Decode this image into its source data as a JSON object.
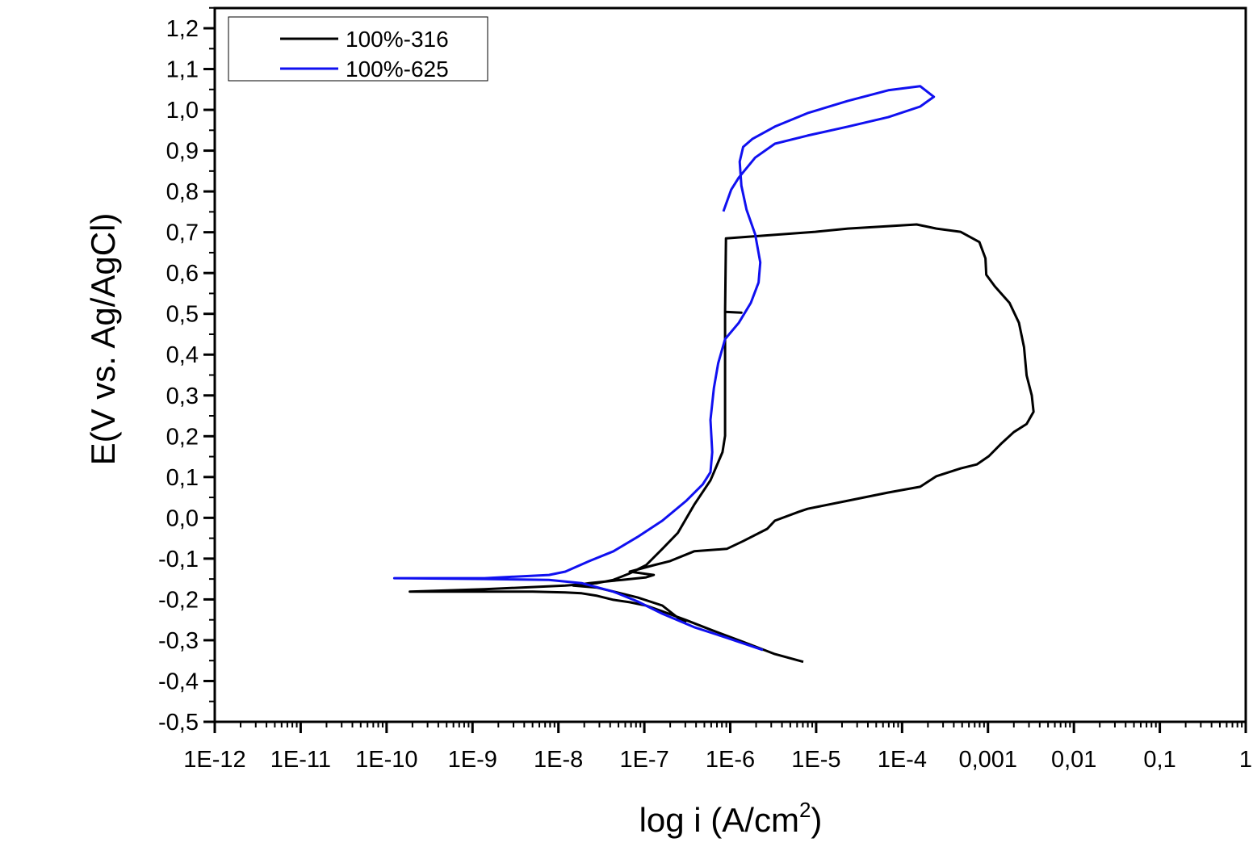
{
  "chart_data": {
    "type": "line",
    "title": "",
    "xlabel": "log i (A/cm",
    "xlabel_sup": "2",
    "xlabel_close": ")",
    "ylabel": "E(V vs. Ag/AgCl)",
    "x_scale": "log",
    "x_note": "x values are log10 of current density i (A/cm2)",
    "xlim_log10": [
      -12,
      0
    ],
    "ylim": [
      -0.5,
      1.25
    ],
    "x_tick_labels": [
      "1E-12",
      "1E-11",
      "1E-10",
      "1E-9",
      "1E-8",
      "1E-7",
      "1E-6",
      "1E-5",
      "1E-4",
      "0,001",
      "0,01",
      "0,1",
      "1"
    ],
    "y_ticks": [
      -0.5,
      -0.4,
      -0.3,
      -0.2,
      -0.1,
      0,
      0.1,
      0.2,
      0.3,
      0.4,
      0.5,
      0.6,
      0.7,
      0.8,
      0.9,
      1.0,
      1.1,
      1.2
    ],
    "y_tick_labels": [
      "-0,5",
      "-0,4",
      "-0,3",
      "-0,2",
      "-0,1",
      "0,0",
      "0,1",
      "0,2",
      "0,3",
      "0,4",
      "0,5",
      "0,6",
      "0,7",
      "0,8",
      "0,9",
      "1,0",
      "1,1",
      "1,2"
    ],
    "grid": false,
    "legend_position": "top-left",
    "series": [
      {
        "name": "100%-316",
        "color": "#000000",
        "points": [
          [
            -5.15,
            -0.353
          ],
          [
            -5.48,
            -0.334
          ],
          [
            -5.85,
            -0.304
          ],
          [
            -6.23,
            -0.274
          ],
          [
            -6.51,
            -0.251
          ],
          [
            -6.79,
            -0.229
          ],
          [
            -6.98,
            -0.215
          ],
          [
            -7.17,
            -0.207
          ],
          [
            -7.36,
            -0.201
          ],
          [
            -7.55,
            -0.191
          ],
          [
            -7.73,
            -0.185
          ],
          [
            -7.92,
            -0.183
          ],
          [
            -8.3,
            -0.181
          ],
          [
            -8.86,
            -0.181
          ],
          [
            -9.73,
            -0.181
          ],
          [
            -8.86,
            -0.175
          ],
          [
            -7.92,
            -0.166
          ],
          [
            -7.55,
            -0.16
          ],
          [
            -7.36,
            -0.152
          ],
          [
            -7.17,
            -0.136
          ],
          [
            -6.98,
            -0.116
          ],
          [
            -6.79,
            -0.076
          ],
          [
            -6.61,
            -0.037
          ],
          [
            -6.42,
            0.032
          ],
          [
            -6.23,
            0.092
          ],
          [
            -6.21,
            0.102
          ],
          [
            -6.09,
            0.161
          ],
          [
            -6.06,
            0.201
          ],
          [
            -6.06,
            0.28
          ],
          [
            -6.06,
            0.478
          ],
          [
            -6.06,
            0.505
          ],
          [
            -5.87,
            0.503
          ],
          [
            -6.06,
            0.505
          ],
          [
            -6.05,
            0.685
          ],
          [
            -5.01,
            0.701
          ],
          [
            -4.63,
            0.709
          ],
          [
            -4.16,
            0.715
          ],
          [
            -3.83,
            0.719
          ],
          [
            -3.6,
            0.709
          ],
          [
            -3.32,
            0.701
          ],
          [
            -3.1,
            0.676
          ],
          [
            -3.03,
            0.636
          ],
          [
            -3.02,
            0.596
          ],
          [
            -2.92,
            0.567
          ],
          [
            -2.75,
            0.527
          ],
          [
            -2.64,
            0.478
          ],
          [
            -2.58,
            0.418
          ],
          [
            -2.55,
            0.349
          ],
          [
            -2.49,
            0.3
          ],
          [
            -2.47,
            0.26
          ],
          [
            -2.55,
            0.23
          ],
          [
            -2.7,
            0.21
          ],
          [
            -2.85,
            0.181
          ],
          [
            -2.99,
            0.151
          ],
          [
            -3.13,
            0.131
          ],
          [
            -3.32,
            0.121
          ],
          [
            -3.6,
            0.102
          ],
          [
            -3.79,
            0.076
          ],
          [
            -4.16,
            0.062
          ],
          [
            -4.63,
            0.042
          ],
          [
            -5.1,
            0.022
          ],
          [
            -5.2,
            0.015
          ],
          [
            -5.48,
            -0.007
          ],
          [
            -5.57,
            -0.027
          ],
          [
            -5.85,
            -0.057
          ],
          [
            -6.04,
            -0.076
          ],
          [
            -6.42,
            -0.082
          ],
          [
            -6.7,
            -0.106
          ],
          [
            -6.89,
            -0.116
          ],
          [
            -7.17,
            -0.132
          ],
          [
            -6.89,
            -0.14
          ],
          [
            -6.98,
            -0.146
          ],
          [
            -7.26,
            -0.152
          ],
          [
            -7.64,
            -0.16
          ],
          [
            -7.83,
            -0.166
          ],
          [
            -7.55,
            -0.171
          ],
          [
            -7.08,
            -0.195
          ],
          [
            -6.79,
            -0.215
          ],
          [
            -6.61,
            -0.245
          ],
          [
            -6.51,
            -0.255
          ]
        ]
      },
      {
        "name": "100%-625",
        "color": "#1010f0",
        "points": [
          [
            -5.62,
            -0.324
          ],
          [
            -6.04,
            -0.294
          ],
          [
            -6.42,
            -0.268
          ],
          [
            -6.79,
            -0.235
          ],
          [
            -7.08,
            -0.205
          ],
          [
            -7.36,
            -0.181
          ],
          [
            -7.73,
            -0.16
          ],
          [
            -8.11,
            -0.152
          ],
          [
            -8.86,
            -0.15
          ],
          [
            -9.91,
            -0.148
          ],
          [
            -8.86,
            -0.148
          ],
          [
            -8.11,
            -0.14
          ],
          [
            -7.92,
            -0.132
          ],
          [
            -7.64,
            -0.106
          ],
          [
            -7.36,
            -0.082
          ],
          [
            -7.08,
            -0.047
          ],
          [
            -6.79,
            -0.007
          ],
          [
            -6.51,
            0.042
          ],
          [
            -6.32,
            0.082
          ],
          [
            -6.23,
            0.112
          ],
          [
            -6.21,
            0.161
          ],
          [
            -6.23,
            0.24
          ],
          [
            -6.19,
            0.319
          ],
          [
            -6.14,
            0.379
          ],
          [
            -6.06,
            0.438
          ],
          [
            -5.9,
            0.478
          ],
          [
            -5.76,
            0.527
          ],
          [
            -5.67,
            0.577
          ],
          [
            -5.65,
            0.626
          ],
          [
            -5.71,
            0.695
          ],
          [
            -5.81,
            0.755
          ],
          [
            -5.87,
            0.814
          ],
          [
            -5.89,
            0.873
          ],
          [
            -5.85,
            0.909
          ],
          [
            -5.74,
            0.929
          ],
          [
            -5.48,
            0.959
          ],
          [
            -5.1,
            0.992
          ],
          [
            -4.63,
            1.022
          ],
          [
            -4.16,
            1.048
          ],
          [
            -3.79,
            1.058
          ],
          [
            -3.63,
            1.032
          ],
          [
            -3.79,
            1.008
          ],
          [
            -4.16,
            0.982
          ],
          [
            -4.63,
            0.959
          ],
          [
            -5.1,
            0.937
          ],
          [
            -5.48,
            0.917
          ],
          [
            -5.71,
            0.883
          ],
          [
            -5.9,
            0.834
          ],
          [
            -5.99,
            0.804
          ],
          [
            -6.08,
            0.751
          ]
        ]
      }
    ]
  }
}
